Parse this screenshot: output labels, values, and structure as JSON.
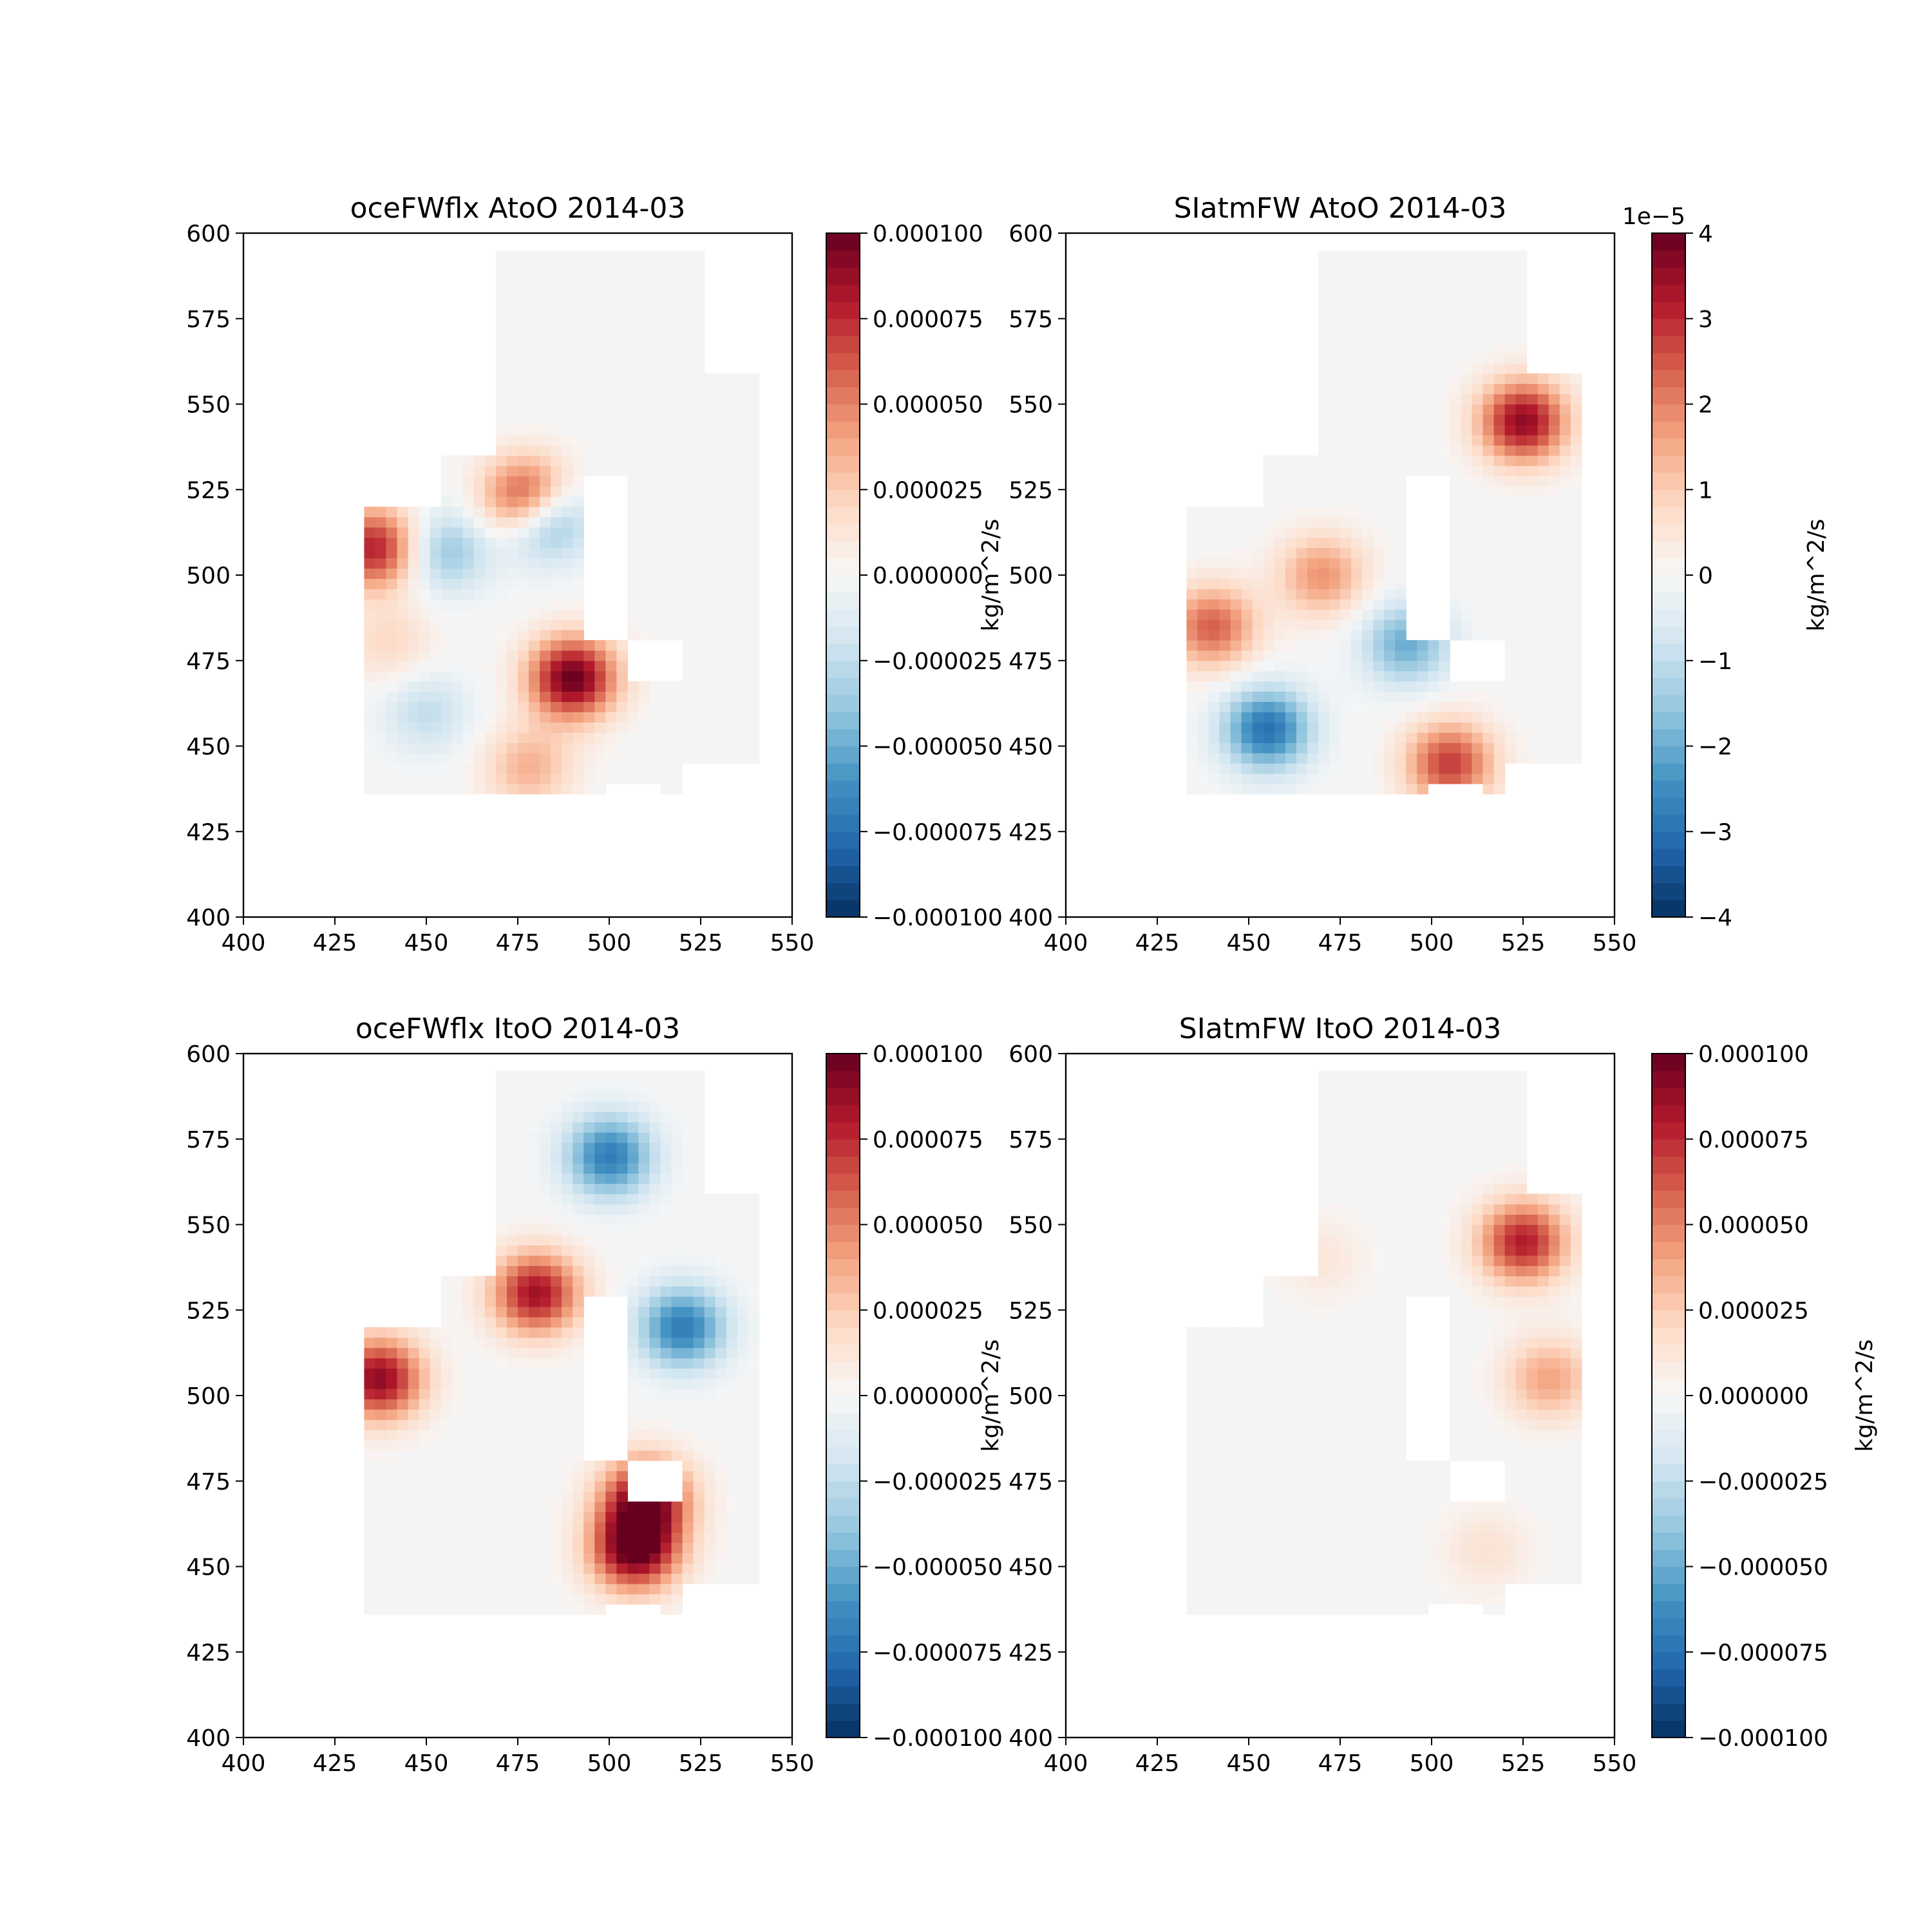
{
  "colors": {
    "rdbu": [
      "#053061",
      "#2166ac",
      "#4393c3",
      "#92c5de",
      "#d1e5f0",
      "#f7f7f7",
      "#fddbc7",
      "#f4a582",
      "#d6604d",
      "#b2182b",
      "#67001f"
    ],
    "background": "#f4f4f4"
  },
  "chart_data": [
    {
      "type": "heatmap",
      "title": "oceFWflx AtoO 2014-03",
      "xlim": [
        400,
        550
      ],
      "ylim": [
        400,
        600
      ],
      "xticks": [
        "400",
        "425",
        "450",
        "475",
        "500",
        "525",
        "550"
      ],
      "yticks": [
        "400",
        "425",
        "450",
        "475",
        "500",
        "525",
        "550",
        "575",
        "600"
      ],
      "colorbar": {
        "label": "kg/m^2/s",
        "range": [
          -0.0001,
          0.0001
        ],
        "ticks": [
          "−0.000100",
          "−0.000075",
          "−0.000050",
          "−0.000025",
          "0.000000",
          "0.000025",
          "0.000050",
          "0.000075",
          "0.000100"
        ],
        "offset": ""
      },
      "features": [
        {
          "x": 490,
          "y": 470,
          "value": 1.0
        },
        {
          "x": 478,
          "y": 522,
          "value": 1.0
        },
        {
          "x": 436,
          "y": 508,
          "value": 0.8
        },
        {
          "x": 482,
          "y": 517,
          "value": -0.8
        },
        {
          "x": 455,
          "y": 507,
          "value": -0.4
        },
        {
          "x": 450,
          "y": 460,
          "value": -0.25
        },
        {
          "x": 440,
          "y": 480,
          "value": 0.2
        },
        {
          "x": 478,
          "y": 444,
          "value": 0.35
        }
      ]
    },
    {
      "type": "heatmap",
      "title": "SIatmFW AtoO 2014-03",
      "xlim": [
        400,
        550
      ],
      "ylim": [
        400,
        600
      ],
      "xticks": [
        "400",
        "425",
        "450",
        "475",
        "500",
        "525",
        "550"
      ],
      "yticks": [
        "400",
        "425",
        "450",
        "475",
        "500",
        "525",
        "550",
        "575",
        "600"
      ],
      "colorbar": {
        "label": "kg/m^2/s",
        "range": [
          -4,
          4
        ],
        "ticks": [
          "−4",
          "−3",
          "−2",
          "−1",
          "0",
          "1",
          "2",
          "3",
          "4"
        ],
        "offset": "1e−5"
      },
      "features": [
        {
          "x": 440,
          "y": 485,
          "value": 0.6
        },
        {
          "x": 470,
          "y": 500,
          "value": 0.45
        },
        {
          "x": 455,
          "y": 455,
          "value": -0.75
        },
        {
          "x": 493,
          "y": 480,
          "value": -0.5
        },
        {
          "x": 505,
          "y": 445,
          "value": 0.7
        },
        {
          "x": 525,
          "y": 545,
          "value": 0.9
        }
      ]
    },
    {
      "type": "heatmap",
      "title": "oceFWflx ItoO 2014-03",
      "xlim": [
        400,
        550
      ],
      "ylim": [
        400,
        600
      ],
      "xticks": [
        "400",
        "425",
        "450",
        "475",
        "500",
        "525",
        "550"
      ],
      "yticks": [
        "400",
        "425",
        "450",
        "475",
        "500",
        "525",
        "550",
        "575",
        "600"
      ],
      "colorbar": {
        "label": "kg/m^2/s",
        "range": [
          -0.0001,
          0.0001
        ],
        "ticks": [
          "−0.000100",
          "−0.000075",
          "−0.000050",
          "−0.000025",
          "0.000000",
          "0.000025",
          "0.000050",
          "0.000075",
          "0.000100"
        ],
        "offset": ""
      },
      "features": [
        {
          "x": 500,
          "y": 570,
          "value": -0.7
        },
        {
          "x": 520,
          "y": 520,
          "value": -0.7
        },
        {
          "x": 437,
          "y": 505,
          "value": 0.9
        },
        {
          "x": 480,
          "y": 530,
          "value": 0.85
        },
        {
          "x": 510,
          "y": 470,
          "value": 0.9
        },
        {
          "x": 507,
          "y": 455,
          "value": 1.0
        }
      ]
    },
    {
      "type": "heatmap",
      "title": "SIatmFW ItoO 2014-03",
      "xlim": [
        400,
        550
      ],
      "ylim": [
        400,
        600
      ],
      "xticks": [
        "400",
        "425",
        "450",
        "475",
        "500",
        "525",
        "550"
      ],
      "yticks": [
        "400",
        "425",
        "450",
        "475",
        "500",
        "525",
        "550",
        "575",
        "600"
      ],
      "colorbar": {
        "label": "kg/m^2/s",
        "range": [
          -0.0001,
          0.0001
        ],
        "ticks": [
          "−0.000100",
          "−0.000075",
          "−0.000050",
          "−0.000025",
          "0.000000",
          "0.000025",
          "0.000050",
          "0.000075",
          "0.000100"
        ],
        "offset": ""
      },
      "features": [
        {
          "x": 525,
          "y": 545,
          "value": 0.8
        },
        {
          "x": 532,
          "y": 505,
          "value": 0.4
        },
        {
          "x": 470,
          "y": 540,
          "value": 0.12
        },
        {
          "x": 515,
          "y": 455,
          "value": 0.15
        }
      ]
    }
  ]
}
